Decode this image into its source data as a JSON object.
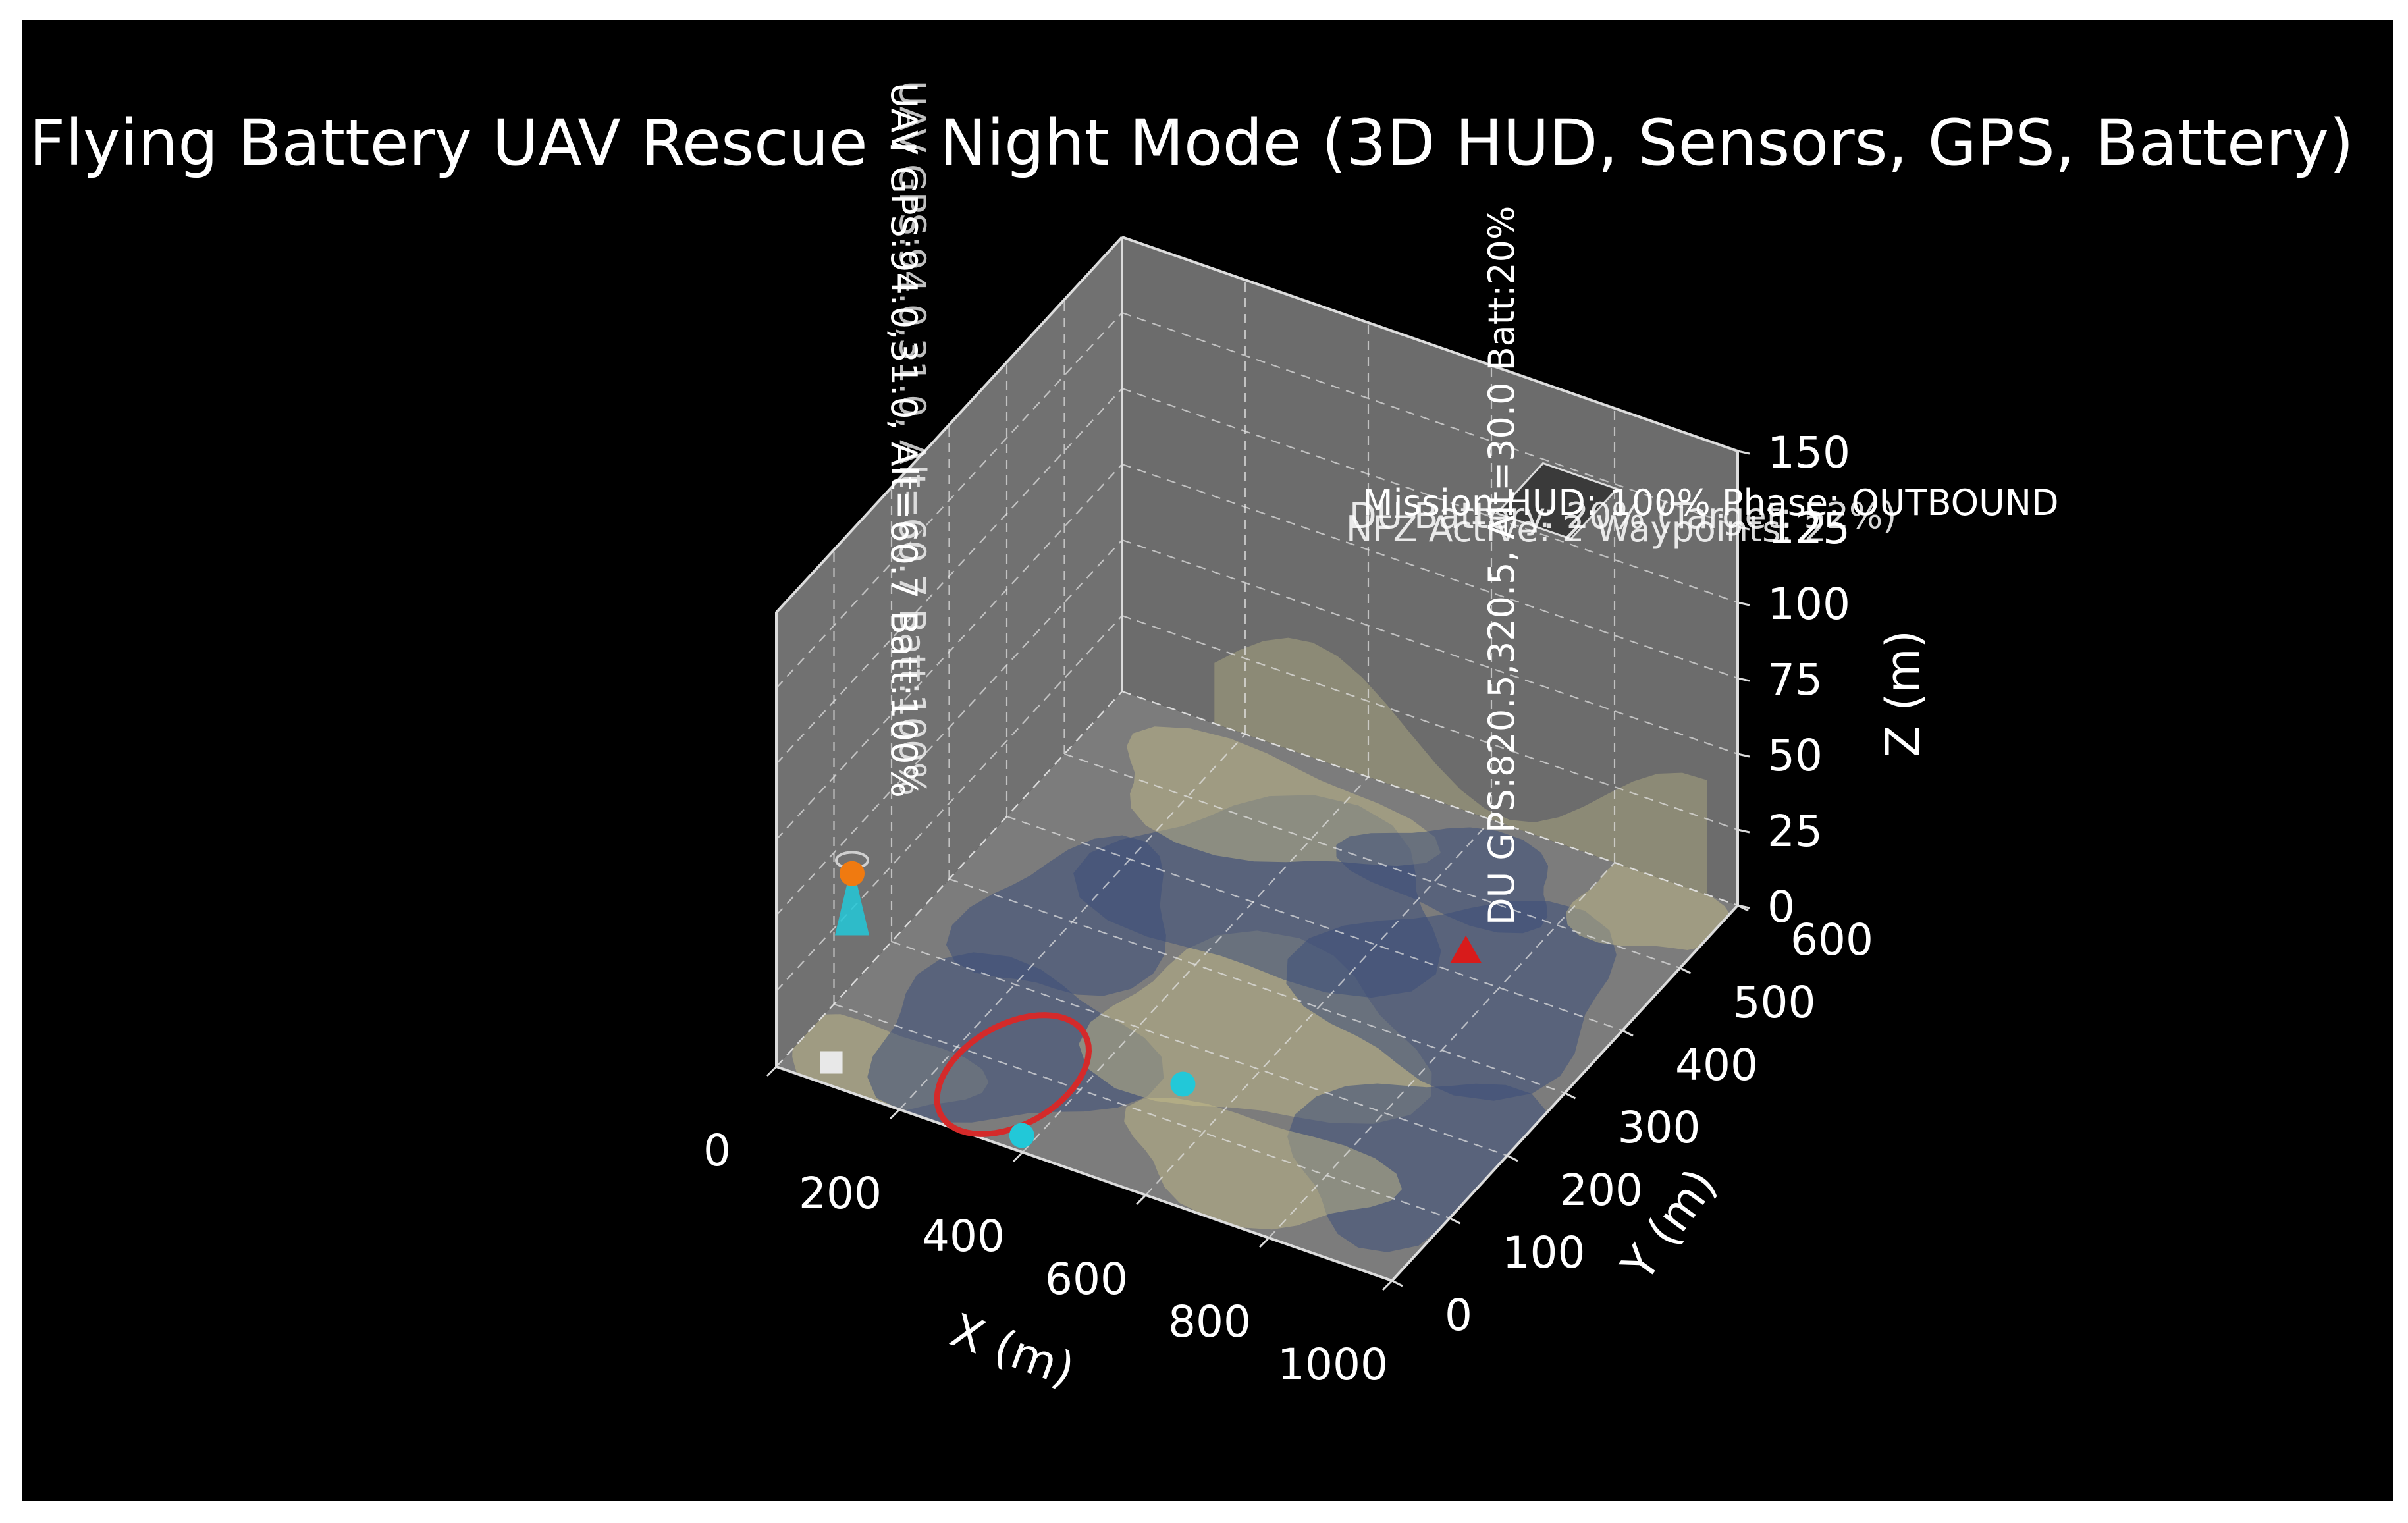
{
  "chart_data": {
    "type": "3d-scatter",
    "title": "Flying Battery UAV Rescue – Night Mode (3D HUD, Sensors, GPS, Battery)",
    "xlabel": "X (m)",
    "ylabel": "Y (m)",
    "zlabel": "Z (m)",
    "xlim": [
      0,
      1000
    ],
    "ylim": [
      0,
      600
    ],
    "zlim": [
      0,
      150
    ],
    "x_ticks": [
      "0",
      "200",
      "400",
      "600",
      "800",
      "1000"
    ],
    "y_ticks": [
      "0",
      "100",
      "200",
      "300",
      "400",
      "500",
      "600"
    ],
    "z_ticks": [
      "0",
      "25",
      "50",
      "75",
      "100",
      "125",
      "150"
    ],
    "grid": true,
    "background": "#000000",
    "pane_color": "#8a8a8a",
    "terrain_colors": [
      "#c9c28a",
      "#3c4e7a"
    ],
    "points": [
      {
        "name": "uav",
        "x": 94,
        "y": 31,
        "z": 61,
        "marker": "cone",
        "color": "#22c8d8"
      },
      {
        "name": "uav-marker",
        "x": 94,
        "y": 31,
        "z": 64,
        "marker": "circle",
        "color": "#f07a10"
      },
      {
        "name": "base",
        "x": 80,
        "y": 10,
        "z": 5,
        "marker": "square",
        "color": "#e8e8e8"
      },
      {
        "name": "waypoint",
        "x": 520,
        "y": 150,
        "z": 0,
        "marker": "circle",
        "color": "#22c8d8"
      },
      {
        "name": "waypoint",
        "x": 380,
        "y": 20,
        "z": 0,
        "marker": "circle",
        "color": "#22c8d8"
      },
      {
        "name": "du",
        "x": 820.5,
        "y": 320,
        "z": 30,
        "marker": "triangle",
        "color": "#d81b1b"
      }
    ],
    "landing_zone": {
      "x": 800,
      "y": 500,
      "z": 140,
      "color": "#3a3a3a"
    },
    "danger_circle": {
      "x": 300,
      "y": 90,
      "color": "#d42a2a"
    },
    "annotations": {
      "uav_label": "UAV GPS:94.0,31.0, Alt=60.7  Batt:100%",
      "uav_label_overlap": "UAV GPS:94.0,31.0, Alt=60.7  Batt:100%",
      "du_label": "DU GPS:820.5,320.5, Alt=30.0  Batt:20%"
    },
    "hud_lines": [
      "Mission HUD: 100%  Phase: OUTBOUND",
      "DU Battery: 20% (Target: 52%)",
      "NFZ Active: 2  Waypoints: 2"
    ]
  }
}
